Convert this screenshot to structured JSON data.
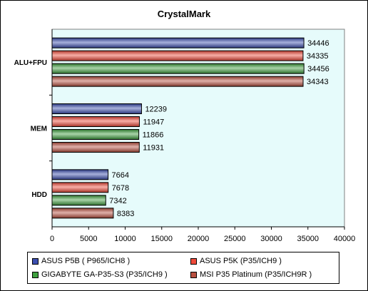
{
  "chart_data": {
    "type": "bar",
    "orientation": "horizontal",
    "title": "CrystalMark",
    "categories": [
      "ALU+FPU",
      "MEM",
      "HDD"
    ],
    "series": [
      {
        "name": "ASUS P5B ( P965/ICH8 )",
        "color": "#3c4fb0",
        "values": [
          34446,
          12239,
          7664
        ]
      },
      {
        "name": "ASUS P5K (P35/ICH9 )",
        "color": "#ef4a3a",
        "values": [
          34335,
          11947,
          7678
        ]
      },
      {
        "name": "GIGABYTE GA-P35-S3 (P35/ICH9 )",
        "color": "#3fa03f",
        "values": [
          34456,
          11866,
          7342
        ]
      },
      {
        "name": "MSI P35 Platinum (P35/ICH9R )",
        "color": "#b85040",
        "values": [
          34343,
          11931,
          8383
        ]
      }
    ],
    "xlim": [
      0,
      40000
    ],
    "xticks": [
      0,
      5000,
      10000,
      15000,
      20000,
      25000,
      30000,
      35000,
      40000
    ],
    "plot_background": "#e6fbfb",
    "legend_position": "bottom",
    "grid": false
  }
}
